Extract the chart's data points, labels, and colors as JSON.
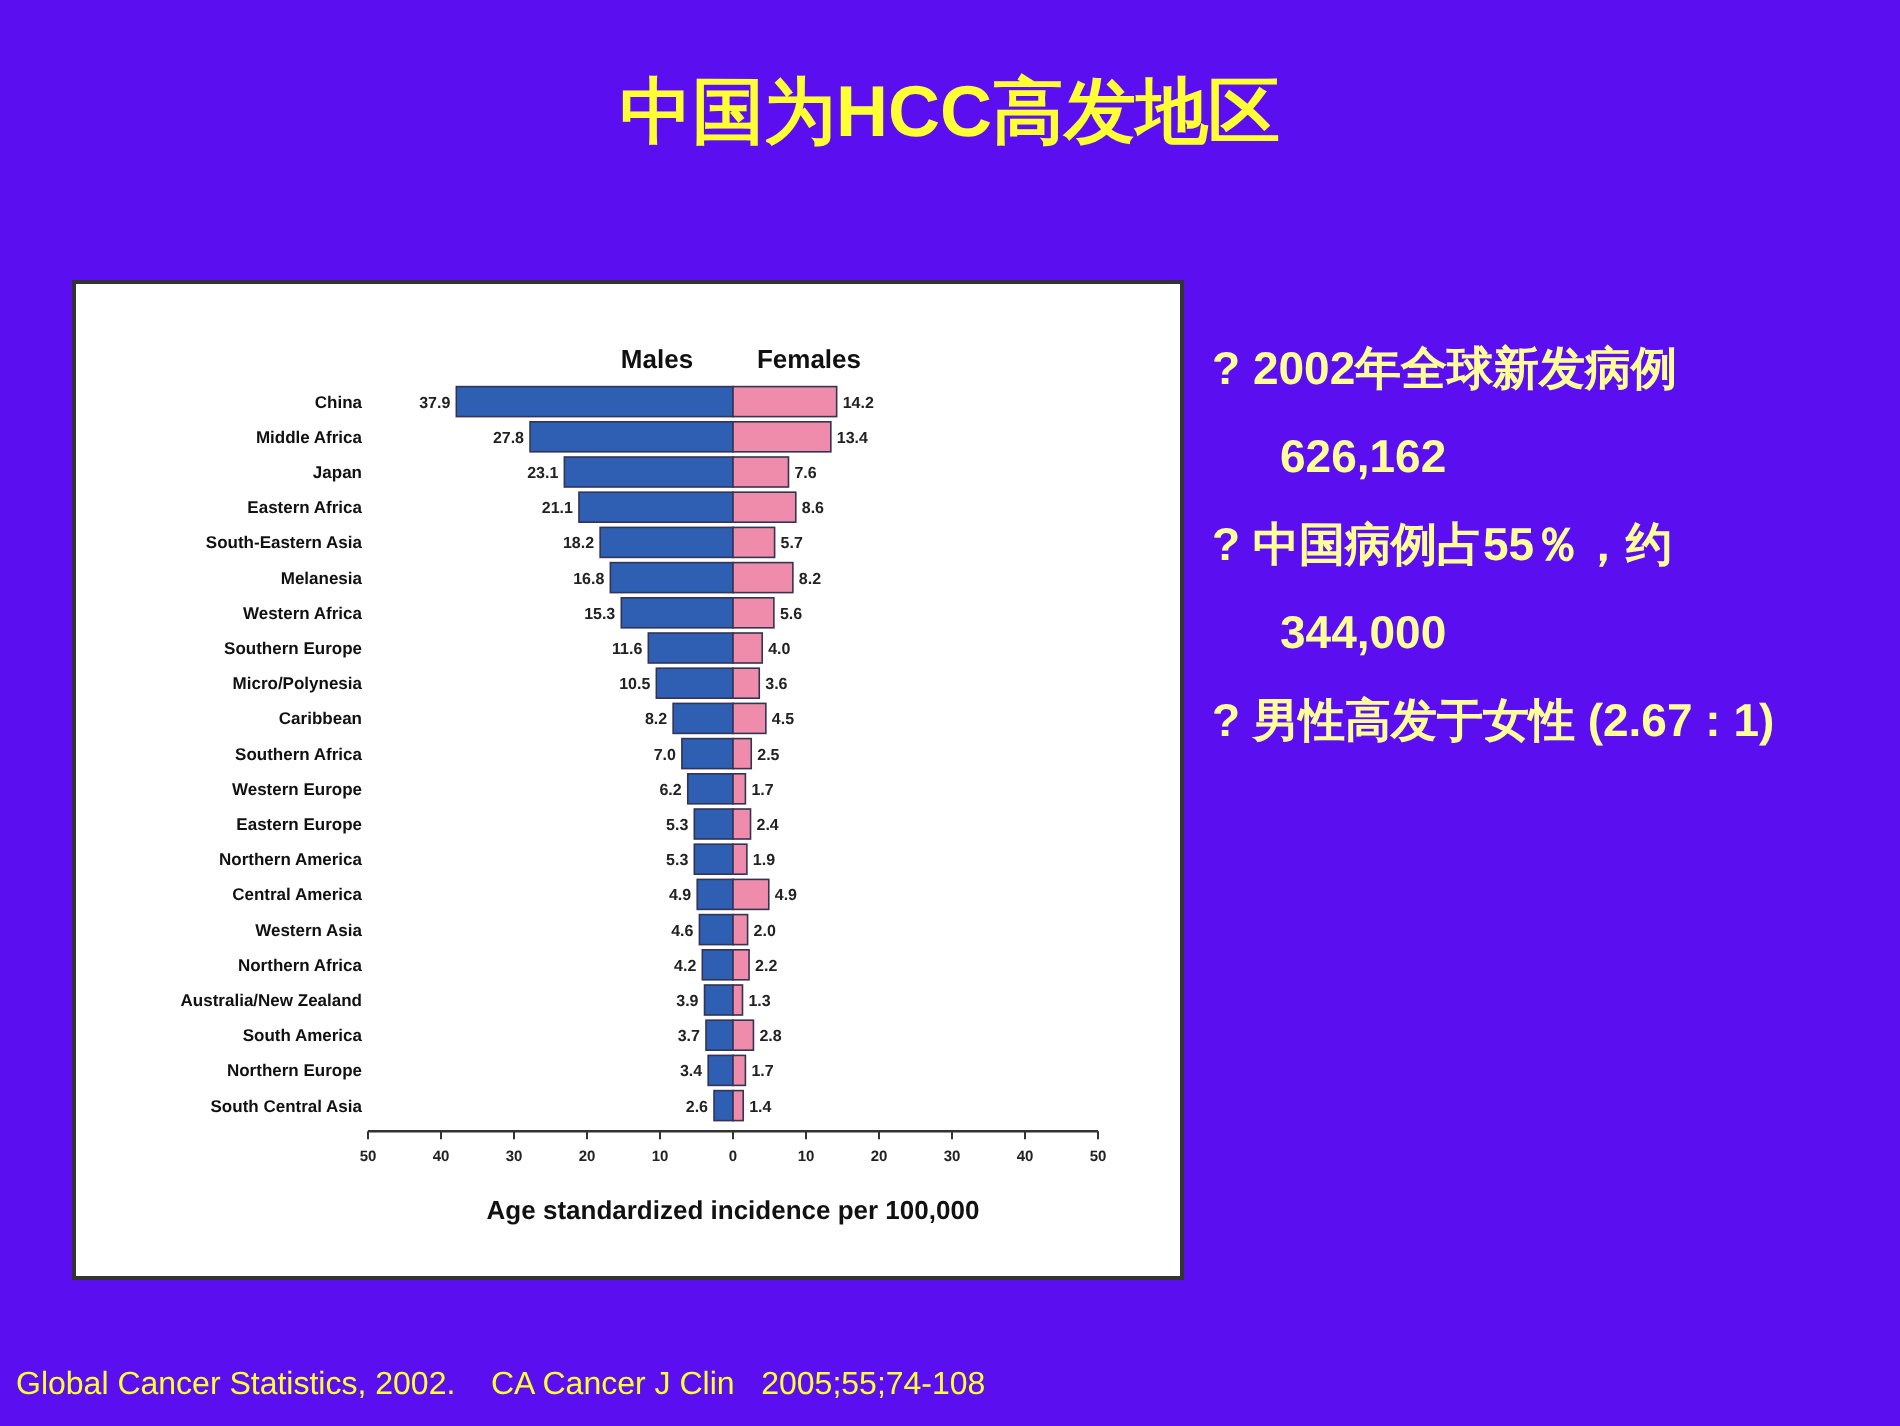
{
  "chart_data": {
    "type": "bar",
    "orientation": "horizontal",
    "title": "中国为HCC高发地区",
    "xlabel": "Age standardized incidence per 100,000",
    "categories": [
      "China",
      "Middle Africa",
      "Japan",
      "Eastern Africa",
      "South-Eastern Asia",
      "Melanesia",
      "Western Africa",
      "Southern Europe",
      "Micro/Polynesia",
      "Caribbean",
      "Southern Africa",
      "Western Europe",
      "Eastern Europe",
      "Northern America",
      "Central America",
      "Western Asia",
      "Northern Africa",
      "Australia/New Zealand",
      "South America",
      "Northern Europe",
      "South Central Asia"
    ],
    "series": [
      {
        "name": "Males",
        "color": "#2f5fb3",
        "values": [
          37.9,
          27.8,
          23.1,
          21.1,
          18.2,
          16.8,
          15.3,
          11.6,
          10.5,
          8.2,
          7.0,
          6.2,
          5.3,
          5.3,
          4.9,
          4.6,
          4.2,
          3.9,
          3.7,
          3.4,
          2.6
        ],
        "base": [
          -37.9,
          -27.8,
          -23.1,
          -21.1,
          -18.2,
          -16.8,
          -15.3,
          -11.6,
          -10.5,
          -8.2,
          -7.0,
          -6.2,
          -5.3,
          -5.3,
          -4.9,
          -4.6,
          -4.2,
          -3.9,
          -3.7,
          -3.4,
          -2.6
        ],
        "value_labels": [
          "37.9",
          "27.8",
          "23.1",
          "21.1",
          "18.2",
          "16.8",
          "15.3",
          "11.6",
          "10.5",
          "8.2",
          "7.0",
          "6.2",
          "5.3",
          "5.3",
          "4.9",
          "4.6",
          "4.2",
          "3.9",
          "3.7",
          "3.4",
          "2.6"
        ]
      },
      {
        "name": "Females",
        "color": "#f08cab",
        "values": [
          14.2,
          13.4,
          7.6,
          8.6,
          5.7,
          8.2,
          5.6,
          4.0,
          3.6,
          4.5,
          2.5,
          1.7,
          2.4,
          1.9,
          4.9,
          2.0,
          2.2,
          1.3,
          2.8,
          1.7,
          1.4
        ],
        "value_labels": [
          "14.2",
          "13.4",
          "7.6",
          "8.6",
          "5.7",
          "8.2",
          "5.6",
          "4.0",
          "3.6",
          "4.5",
          "2.5",
          "1.7",
          "2.4",
          "1.9",
          "4.9",
          "2.0",
          "2.2",
          "1.3",
          "2.8",
          "1.7",
          "1.4"
        ]
      }
    ],
    "xlim": [
      -50,
      50
    ],
    "xticks": [
      {
        "value": -50,
        "label": "50"
      },
      {
        "value": -40,
        "label": "40"
      },
      {
        "value": -30,
        "label": "30"
      },
      {
        "value": -20,
        "label": "20"
      },
      {
        "value": -10,
        "label": "10"
      },
      0,
      10,
      20,
      30,
      40,
      50
    ],
    "grid": false,
    "annotations": [
      "? 2002年全球新发病例 626,162",
      "? 中国病例占55％，约 344,000",
      "? 男性高发于女性 (2.67 : 1)",
      "Global Cancer Statistics, 2002.    CA Cancer J Clin   2005;55;74-108"
    ]
  }
}
